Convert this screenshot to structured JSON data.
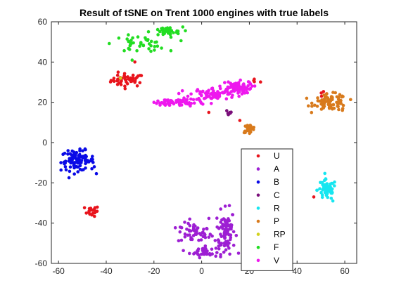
{
  "chart_data": {
    "type": "scatter",
    "title": "Result of tSNE on Trent 1000 engines with true labels",
    "xlabel": "",
    "ylabel": "",
    "xlim": [
      -63,
      65
    ],
    "ylim": [
      -60,
      60
    ],
    "xticks": [
      -60,
      -40,
      -20,
      0,
      20,
      40,
      60
    ],
    "yticks": [
      -60,
      -40,
      -20,
      0,
      20,
      40,
      60
    ],
    "grid": false,
    "legend_position": "lower-right",
    "series": [
      {
        "name": "U",
        "color": "#e8141c",
        "clusters": [
          {
            "center": [
              -31,
              31
            ],
            "spread": [
              3.5,
              1.6
            ],
            "count": 45
          },
          {
            "center": [
              -46,
              -34
            ],
            "spread": [
              1.5,
              1.3
            ],
            "count": 20
          },
          {
            "center": [
              51,
              24
            ],
            "spread": [
              0.8,
              0.8
            ],
            "count": 4
          },
          {
            "center": [
              23,
              30.5
            ],
            "spread": [
              1.5,
              0.4
            ],
            "count": 4
          }
        ],
        "points": [
          [
            -35,
            35
          ],
          [
            -28,
            40
          ],
          [
            3,
            15
          ],
          [
            16,
            11
          ],
          [
            47,
            -27
          ]
        ]
      },
      {
        "name": "A",
        "color": "#9d1fd3",
        "clusters": [
          {
            "center": [
              -3,
              -45
            ],
            "spread": [
              3.5,
              2.5
            ],
            "count": 50
          },
          {
            "center": [
              10,
              -44
            ],
            "spread": [
              2.0,
              5.5
            ],
            "count": 85
          },
          {
            "center": [
              1,
              -54
            ],
            "spread": [
              3.0,
              1.5
            ],
            "count": 40
          }
        ],
        "points": [
          [
            -5,
            -38
          ],
          [
            -9,
            -42
          ],
          [
            3,
            -47
          ],
          [
            8,
            -33
          ]
        ]
      },
      {
        "name": "B",
        "color": "#0a0ae6",
        "clusters": [
          {
            "center": [
              -52,
              -9
            ],
            "spread": [
              3.5,
              2.5
            ],
            "count": 95
          }
        ],
        "points": [
          [
            -56,
            -4
          ],
          [
            -46,
            -13
          ],
          [
            -45,
            -12
          ]
        ]
      },
      {
        "name": "C",
        "color": "#7a0f7a",
        "clusters": [
          {
            "center": [
              11.5,
              15
            ],
            "spread": [
              0.7,
              1.0
            ],
            "count": 7
          }
        ],
        "points": []
      },
      {
        "name": "R",
        "color": "#17e6f0",
        "clusters": [
          {
            "center": [
              52.5,
              -23.5
            ],
            "spread": [
              2.0,
              2.5
            ],
            "count": 60
          }
        ],
        "points": [
          [
            52,
            -18
          ],
          [
            55,
            -29
          ]
        ]
      },
      {
        "name": "P",
        "color": "#d87a1c",
        "clusters": [
          {
            "center": [
              54,
              20
            ],
            "spread": [
              3.5,
              2.0
            ],
            "count": 85
          },
          {
            "center": [
              20,
              7
            ],
            "spread": [
              1.3,
              1.0
            ],
            "count": 25
          }
        ],
        "points": [
          [
            59,
            16
          ]
        ]
      },
      {
        "name": "RP",
        "color": "#d2d21e",
        "clusters": [],
        "points": [
          [
            -34,
            32
          ]
        ]
      },
      {
        "name": "F",
        "color": "#22dd22",
        "clusters": [
          {
            "center": [
              -26,
              49
            ],
            "spread": [
              5.5,
              2.0
            ],
            "count": 40
          },
          {
            "center": [
              -15,
              55
            ],
            "spread": [
              3.5,
              1.2
            ],
            "count": 35
          }
        ],
        "points": []
      },
      {
        "name": "V",
        "color": "#ee18ee",
        "clusters": [
          {
            "center": [
              -8,
              20
            ],
            "spread": [
              4.5,
              1.0
            ],
            "count": 45
          },
          {
            "center": [
              5,
              24
            ],
            "spread": [
              5.0,
              1.6
            ],
            "count": 80
          },
          {
            "center": [
              14,
              27.5
            ],
            "spread": [
              3.5,
              1.5
            ],
            "count": 70
          },
          {
            "center": [
              -15,
              19.5
            ],
            "spread": [
              2.0,
              0.6
            ],
            "count": 18
          }
        ],
        "points": [
          [
            -20,
            20
          ],
          [
            20,
            30
          ]
        ]
      }
    ]
  }
}
